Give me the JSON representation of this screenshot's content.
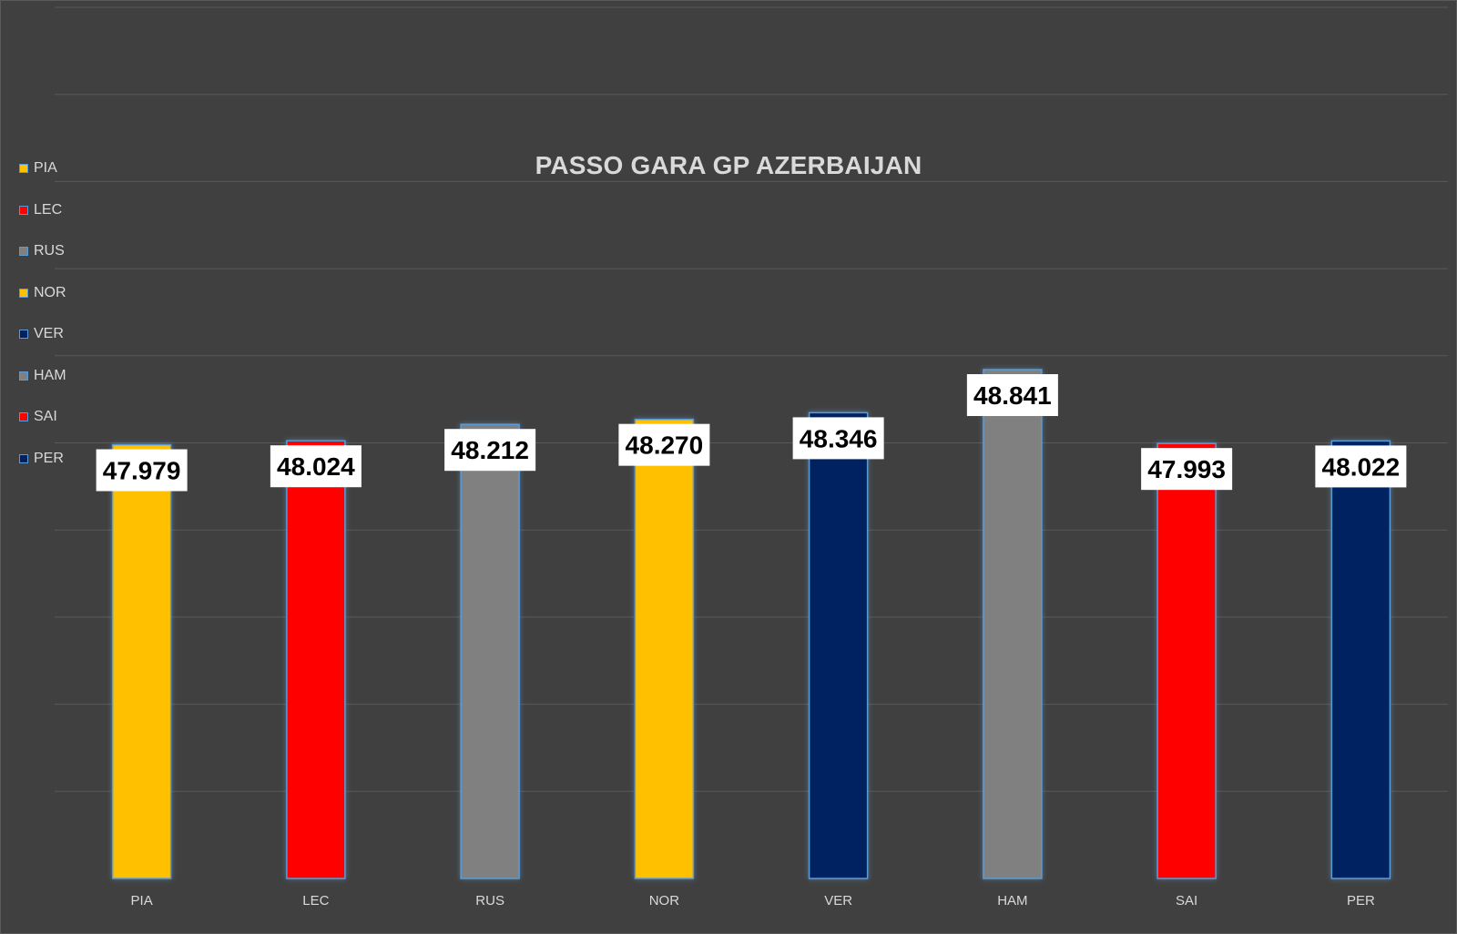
{
  "chart_data": {
    "type": "bar",
    "title": "PASSO GARA GP AZERBAIJAN",
    "categories": [
      "PIA",
      "LEC",
      "RUS",
      "NOR",
      "VER",
      "HAM",
      "SAI",
      "PER"
    ],
    "values": [
      47.979,
      48.024,
      48.212,
      48.27,
      48.346,
      48.841,
      47.993,
      48.022
    ],
    "data_labels": [
      "47.979",
      "48.024",
      "48.212",
      "48.270",
      "48.346",
      "48.841",
      "47.993",
      "48.022"
    ],
    "bar_colors": [
      "#FFC000",
      "#FF0000",
      "#808080",
      "#FFC000",
      "#002060",
      "#808080",
      "#FF0000",
      "#002060"
    ],
    "legend_position": "left",
    "grid": true,
    "ylim": [
      43.0,
      53.0
    ],
    "xlabel": "",
    "ylabel": ""
  },
  "legend": {
    "items": [
      {
        "label": "PIA",
        "color": "#FFC000"
      },
      {
        "label": "LEC",
        "color": "#FF0000"
      },
      {
        "label": "RUS",
        "color": "#808080"
      },
      {
        "label": "NOR",
        "color": "#FFC000"
      },
      {
        "label": "VER",
        "color": "#002060"
      },
      {
        "label": "HAM",
        "color": "#808080"
      },
      {
        "label": "SAI",
        "color": "#FF0000"
      },
      {
        "label": "PER",
        "color": "#002060"
      }
    ]
  },
  "colors": {
    "background": "#404040",
    "gridline": "#595959",
    "text": "#d9d9d9",
    "bar_outline": "#5b9bd5",
    "label_box": "#ffffff"
  }
}
